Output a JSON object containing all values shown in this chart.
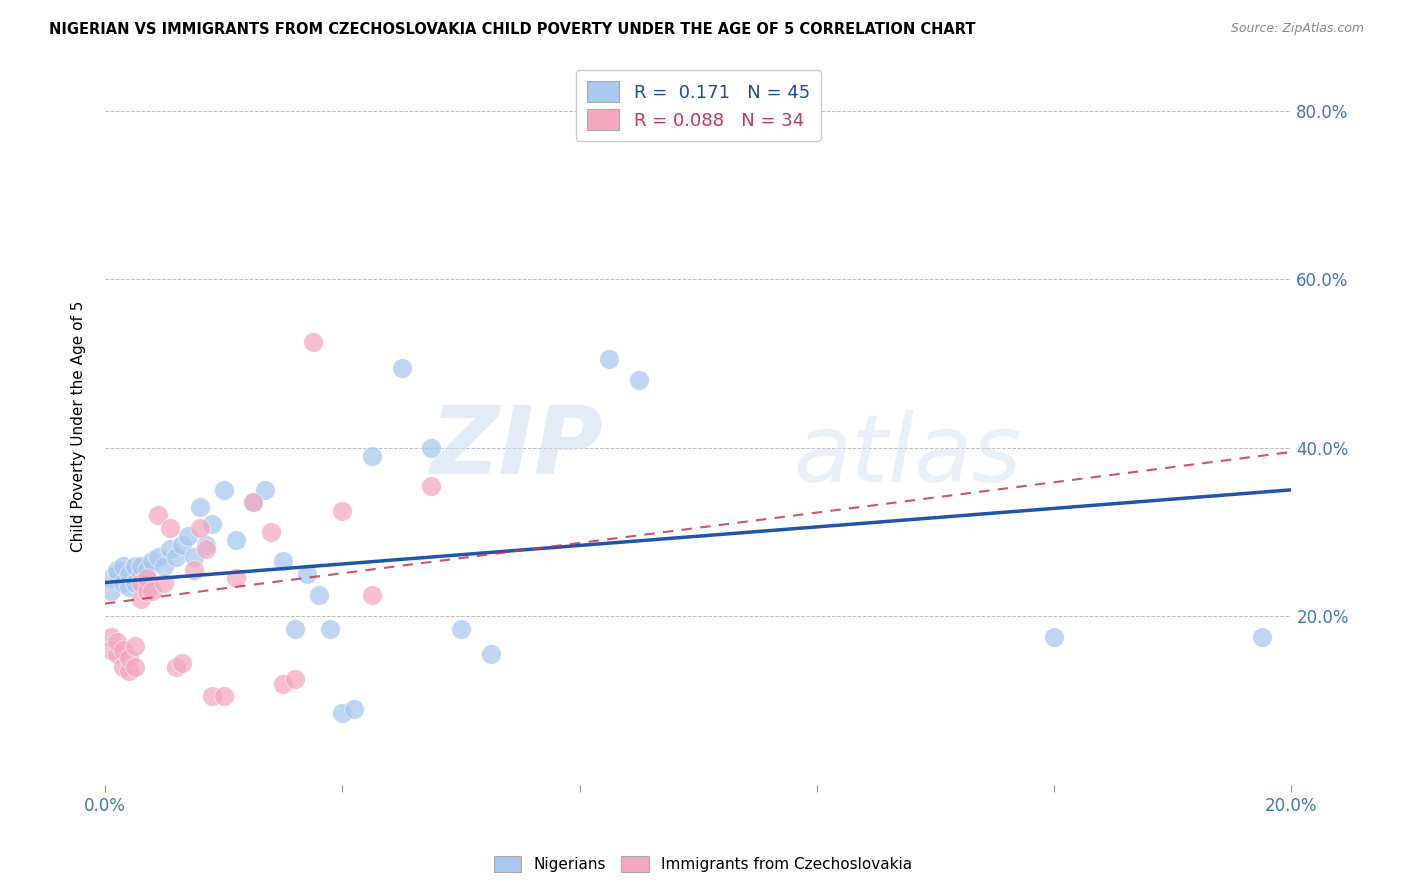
{
  "title": "NIGERIAN VS IMMIGRANTS FROM CZECHOSLOVAKIA CHILD POVERTY UNDER THE AGE OF 5 CORRELATION CHART",
  "source": "Source: ZipAtlas.com",
  "ylabel": "Child Poverty Under the Age of 5",
  "xlim": [
    0.0,
    0.2
  ],
  "ylim": [
    0.0,
    0.85
  ],
  "yticks": [
    0.0,
    0.2,
    0.4,
    0.6,
    0.8
  ],
  "xticks": [
    0.0,
    0.04,
    0.08,
    0.12,
    0.16,
    0.2
  ],
  "xtick_labels": [
    "0.0%",
    "",
    "",
    "",
    "",
    "20.0%"
  ],
  "ytick_labels": [
    "",
    "20.0%",
    "40.0%",
    "60.0%",
    "80.0%"
  ],
  "legend_R1": "0.171",
  "legend_N1": "45",
  "legend_R2": "0.088",
  "legend_N2": "34",
  "blue_color": "#A8C8F0",
  "pink_color": "#F4A8C0",
  "line_blue": "#2255AA",
  "line_pink": "#CC3355",
  "watermark_zip": "ZIP",
  "watermark_atlas": "atlas",
  "blue_scatter_x": [
    0.001,
    0.001,
    0.002,
    0.002,
    0.003,
    0.003,
    0.004,
    0.004,
    0.005,
    0.005,
    0.006,
    0.006,
    0.007,
    0.007,
    0.008,
    0.009,
    0.01,
    0.011,
    0.012,
    0.013,
    0.014,
    0.015,
    0.016,
    0.017,
    0.018,
    0.02,
    0.022,
    0.025,
    0.027,
    0.03,
    0.032,
    0.034,
    0.036,
    0.038,
    0.04,
    0.042,
    0.045,
    0.05,
    0.055,
    0.06,
    0.065,
    0.085,
    0.09,
    0.16,
    0.195
  ],
  "blue_scatter_y": [
    0.245,
    0.23,
    0.25,
    0.255,
    0.24,
    0.26,
    0.235,
    0.25,
    0.24,
    0.26,
    0.25,
    0.26,
    0.24,
    0.255,
    0.265,
    0.27,
    0.26,
    0.28,
    0.27,
    0.285,
    0.295,
    0.27,
    0.33,
    0.285,
    0.31,
    0.35,
    0.29,
    0.335,
    0.35,
    0.265,
    0.185,
    0.25,
    0.225,
    0.185,
    0.085,
    0.09,
    0.39,
    0.495,
    0.4,
    0.185,
    0.155,
    0.505,
    0.48,
    0.175,
    0.175
  ],
  "pink_scatter_x": [
    0.001,
    0.001,
    0.002,
    0.002,
    0.003,
    0.003,
    0.004,
    0.004,
    0.005,
    0.005,
    0.006,
    0.006,
    0.007,
    0.007,
    0.008,
    0.009,
    0.01,
    0.011,
    0.012,
    0.013,
    0.015,
    0.016,
    0.017,
    0.018,
    0.02,
    0.022,
    0.025,
    0.028,
    0.03,
    0.032,
    0.035,
    0.04,
    0.045,
    0.055
  ],
  "pink_scatter_y": [
    0.175,
    0.16,
    0.155,
    0.17,
    0.14,
    0.16,
    0.135,
    0.15,
    0.14,
    0.165,
    0.22,
    0.24,
    0.23,
    0.245,
    0.23,
    0.32,
    0.24,
    0.305,
    0.14,
    0.145,
    0.255,
    0.305,
    0.28,
    0.105,
    0.105,
    0.245,
    0.335,
    0.3,
    0.12,
    0.125,
    0.525,
    0.325,
    0.225,
    0.355
  ],
  "blue_line_x0": 0.0,
  "blue_line_y0": 0.24,
  "blue_line_x1": 0.2,
  "blue_line_y1": 0.35,
  "pink_line_x0": 0.0,
  "pink_line_y0": 0.215,
  "pink_line_x1": 0.2,
  "pink_line_y1": 0.395
}
